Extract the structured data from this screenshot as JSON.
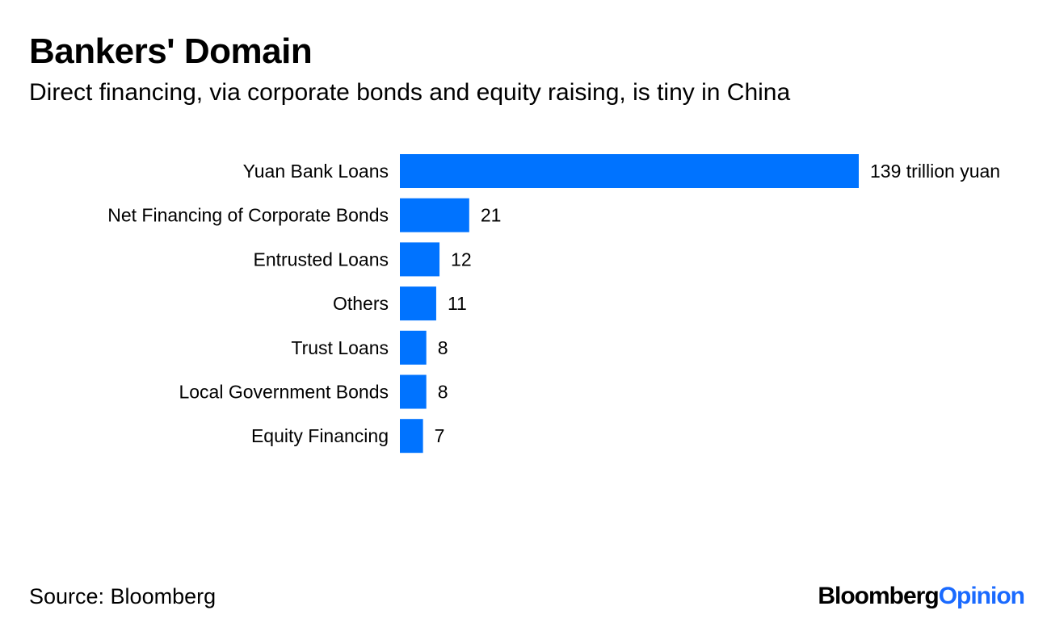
{
  "header": {
    "title": "Bankers' Domain",
    "subtitle": "Direct financing, via corporate bonds and equity raising, is tiny in China"
  },
  "footer": {
    "source": "Source: Bloomberg",
    "logo_part1": "Bloomberg",
    "logo_part2": "Opinion",
    "logo_color_part2": "#1a6aff"
  },
  "chart_data": {
    "type": "bar",
    "orientation": "horizontal",
    "categories": [
      "Yuan Bank Loans",
      "Net Financing of Corporate Bonds",
      "Entrusted Loans",
      "Others",
      "Trust Loans",
      "Local Government Bonds",
      "Equity Financing"
    ],
    "values": [
      139,
      21,
      12,
      11,
      8,
      8,
      7
    ],
    "data_labels": [
      "139 trillion yuan",
      "21",
      "12",
      "11",
      "8",
      "8",
      "7"
    ],
    "bar_color": "#0073ff",
    "xlim": [
      0,
      139
    ],
    "grid": false,
    "legend": "none"
  }
}
